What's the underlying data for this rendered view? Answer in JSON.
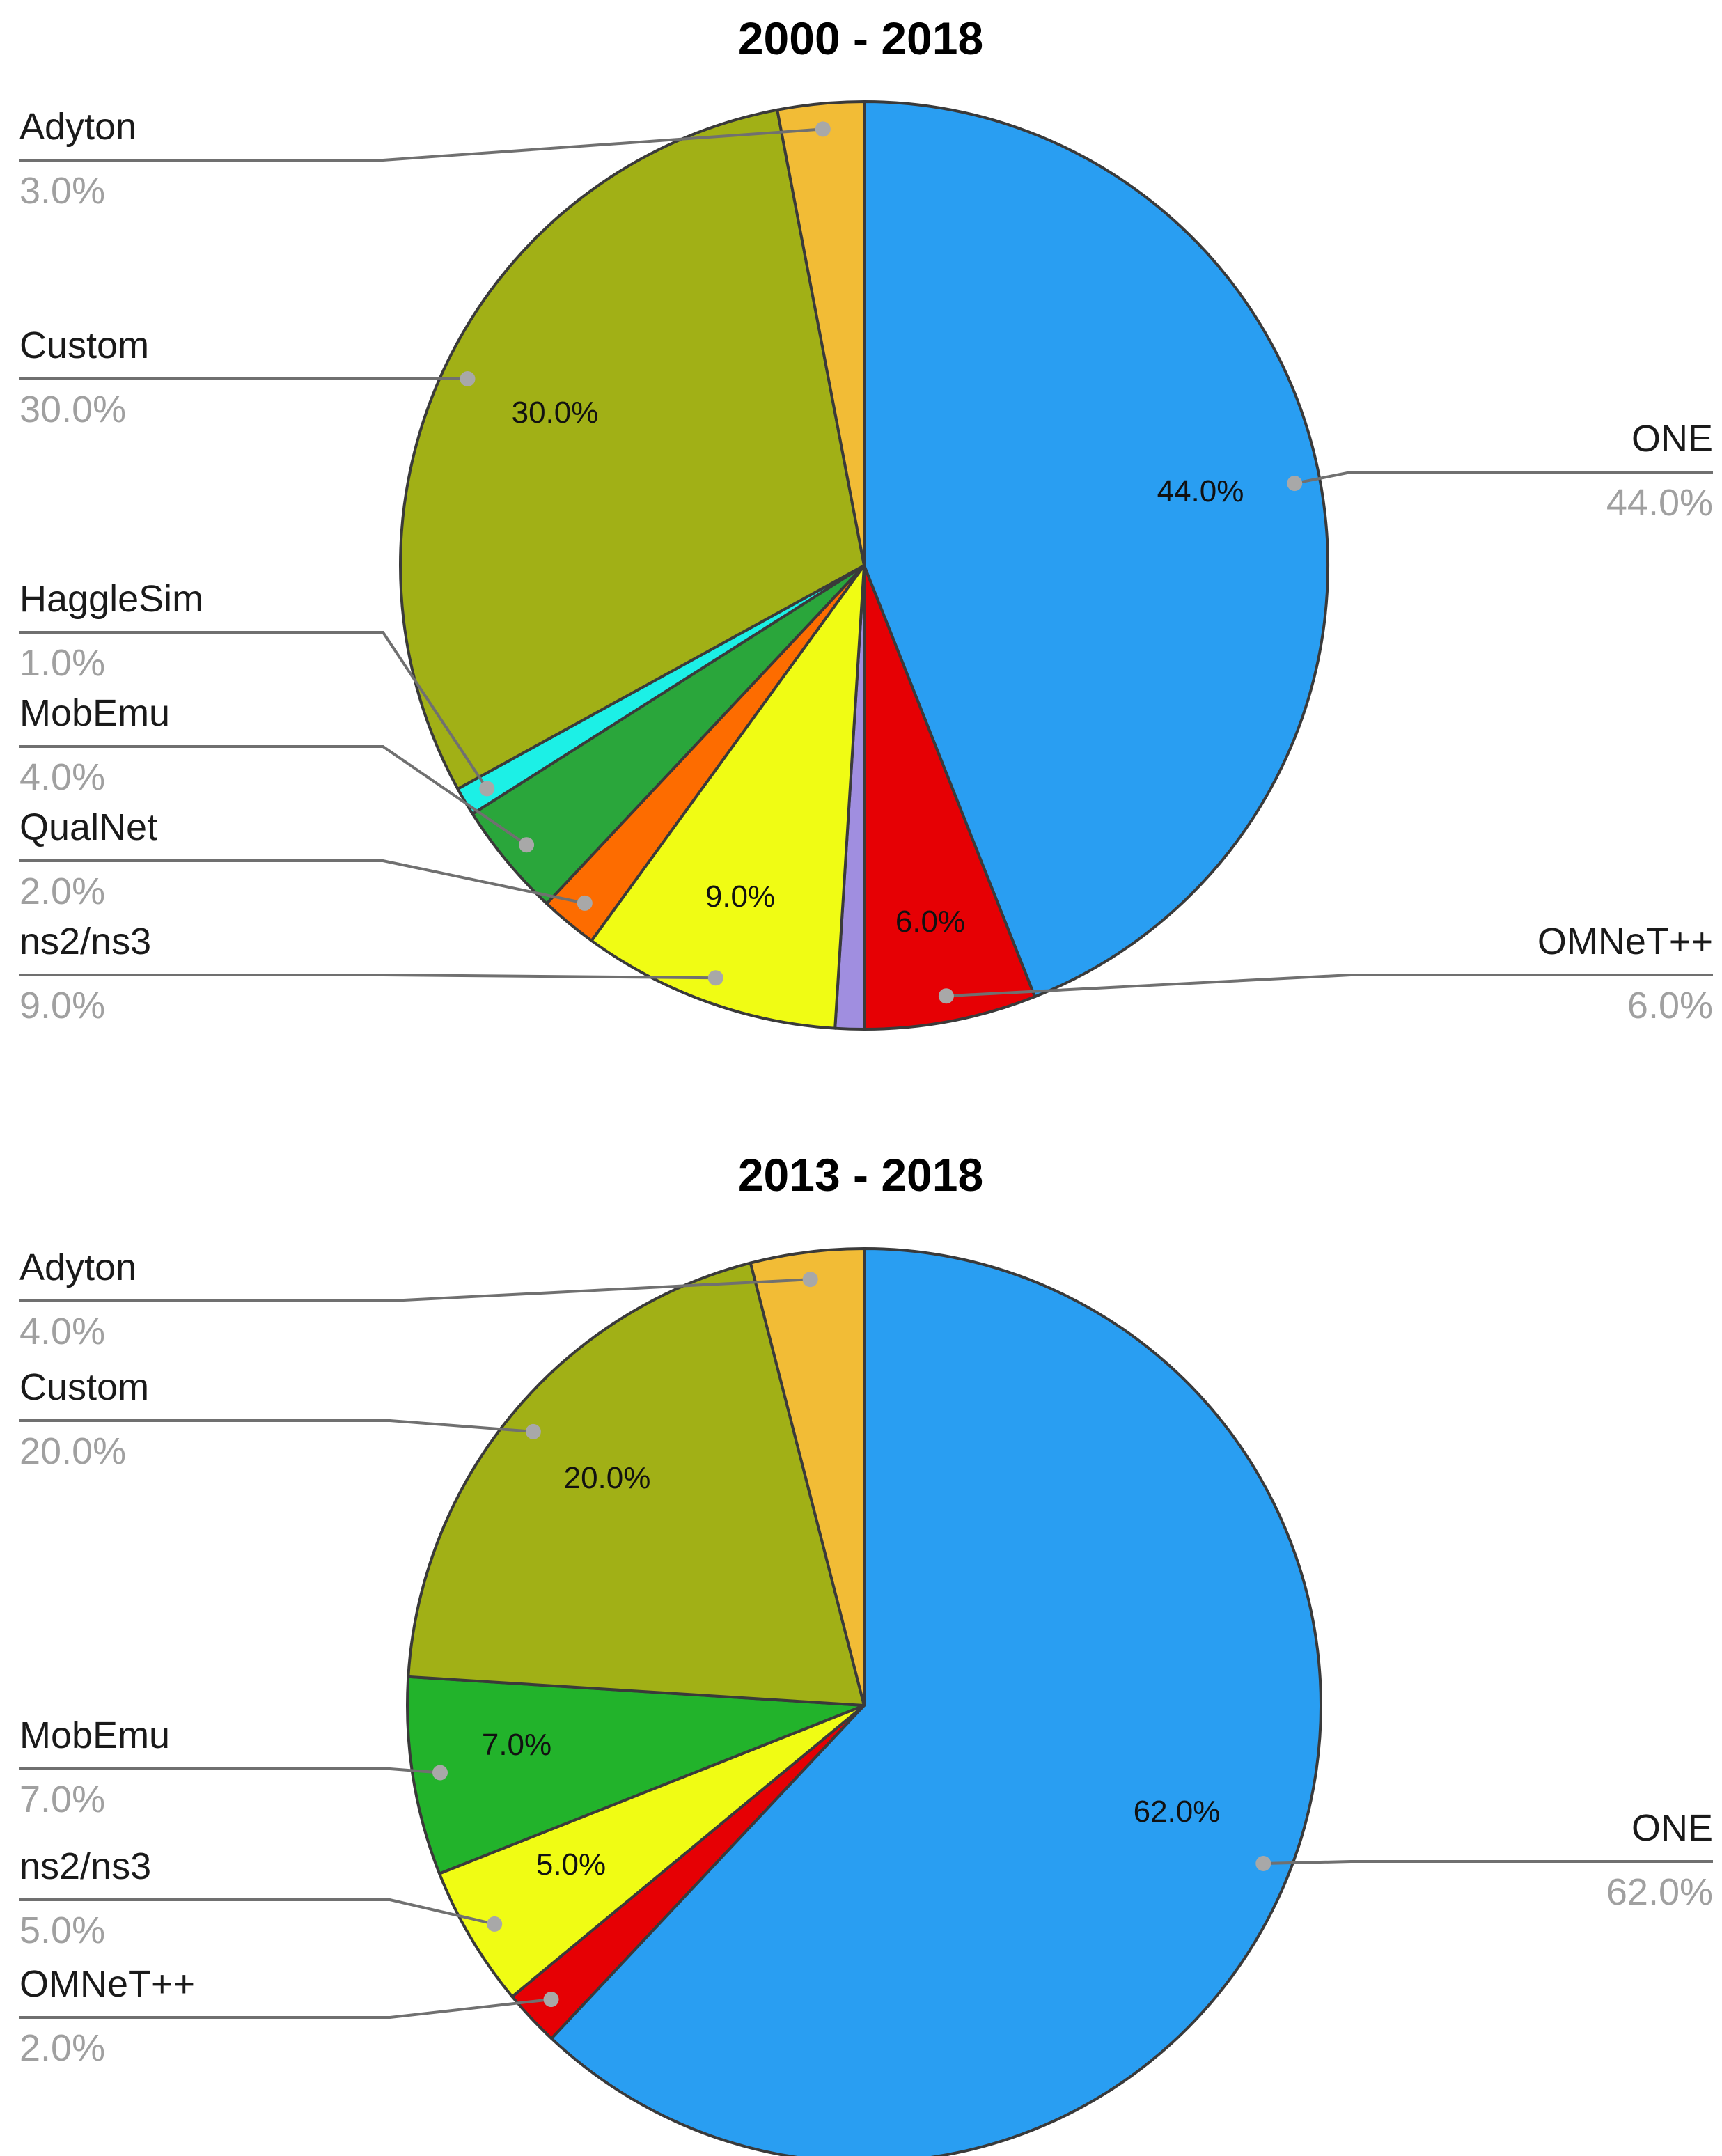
{
  "chart_data": [
    {
      "type": "pie",
      "title": "2000 - 2018",
      "slices": [
        {
          "name": "ONE",
          "value": 44.0,
          "pct": "44.0%",
          "color": "#299ef2",
          "inside": "44.0%",
          "side": "right"
        },
        {
          "name": "OMNeT++",
          "value": 6.0,
          "pct": "6.0%",
          "color": "#e60004",
          "inside": "6.0%",
          "side": "right"
        },
        {
          "name": "",
          "value": 1.0,
          "pct": "",
          "color": "#a08ee0",
          "inside": "",
          "side": "none"
        },
        {
          "name": "ns2/ns3",
          "value": 9.0,
          "pct": "9.0%",
          "color": "#f0fc14",
          "inside": "9.0%",
          "side": "left"
        },
        {
          "name": "QualNet",
          "value": 2.0,
          "pct": "2.0%",
          "color": "#fd6c00",
          "inside": "",
          "side": "left"
        },
        {
          "name": "MobEmu",
          "value": 4.0,
          "pct": "4.0%",
          "color": "#2aa63b",
          "inside": "",
          "side": "left"
        },
        {
          "name": "HaggleSim",
          "value": 1.0,
          "pct": "1.0%",
          "color": "#1cf0e6",
          "inside": "",
          "side": "left"
        },
        {
          "name": "Custom",
          "value": 30.0,
          "pct": "30.0%",
          "color": "#a1b016",
          "inside": "30.0%",
          "side": "left"
        },
        {
          "name": "Adyton",
          "value": 3.0,
          "pct": "3.0%",
          "color": "#f2bc36",
          "inside": "",
          "side": "left"
        }
      ]
    },
    {
      "type": "pie",
      "title": "2013 - 2018",
      "slices": [
        {
          "name": "ONE",
          "value": 62.0,
          "pct": "62.0%",
          "color": "#299ef2",
          "inside": "62.0%",
          "side": "right"
        },
        {
          "name": "OMNeT++",
          "value": 2.0,
          "pct": "2.0%",
          "color": "#e60004",
          "inside": "",
          "side": "left"
        },
        {
          "name": "ns2/ns3",
          "value": 5.0,
          "pct": "5.0%",
          "color": "#f0fc14",
          "inside": "5.0%",
          "side": "left"
        },
        {
          "name": "MobEmu",
          "value": 7.0,
          "pct": "7.0%",
          "color": "#22b32b",
          "inside": "7.0%",
          "side": "left"
        },
        {
          "name": "Custom",
          "value": 20.0,
          "pct": "20.0%",
          "color": "#a1b016",
          "inside": "20.0%",
          "side": "left"
        },
        {
          "name": "Adyton",
          "value": 4.0,
          "pct": "4.0%",
          "color": "#f2bc36",
          "inside": "",
          "side": "left"
        }
      ]
    }
  ]
}
